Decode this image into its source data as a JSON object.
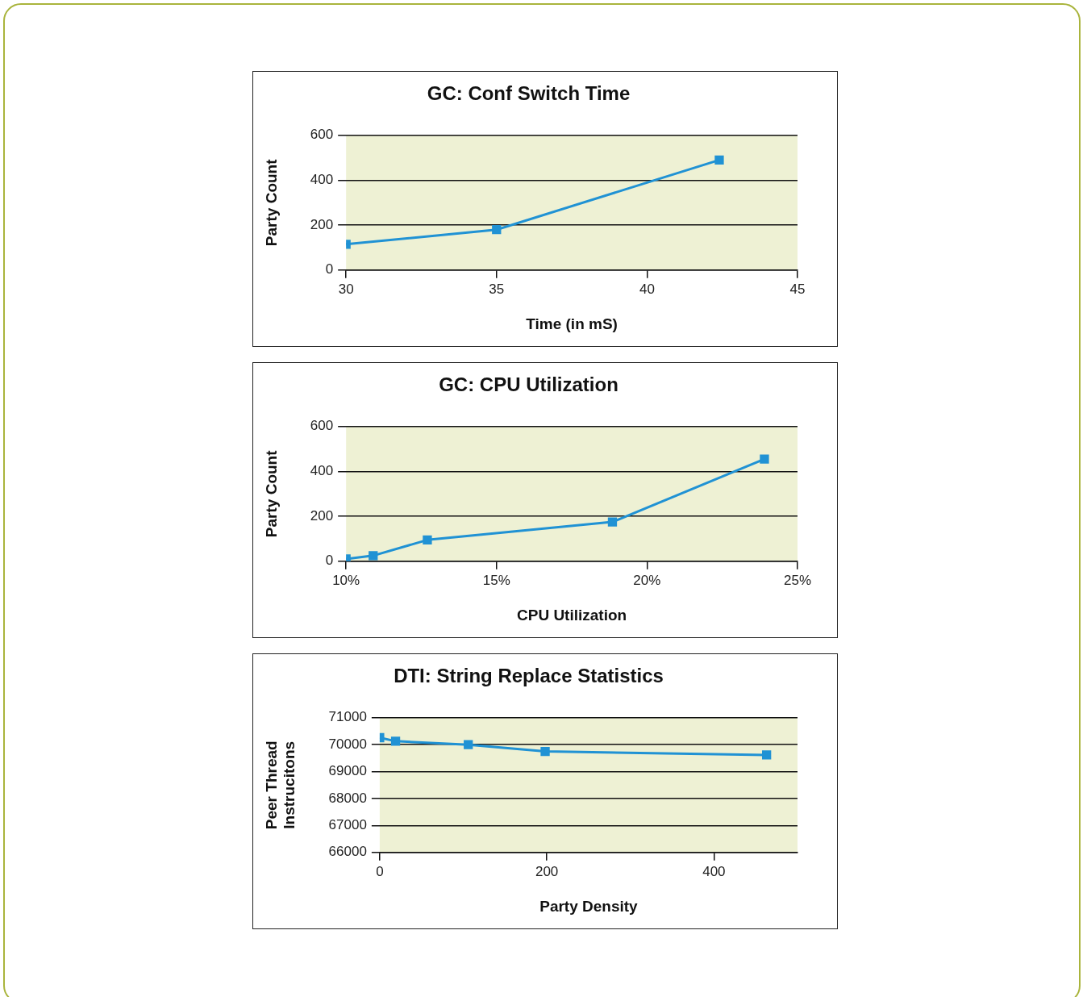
{
  "chart_data": [
    {
      "type": "line",
      "title": "GC: Conf Switch Time",
      "xlabel": "Time (in mS)",
      "ylabel": "Party Count",
      "x": [
        30,
        35,
        42.4
      ],
      "series": [
        {
          "color": "#2092d4",
          "values": [
            115,
            180,
            490
          ]
        }
      ],
      "xlim": [
        30,
        45
      ],
      "xticks": [
        30,
        35,
        40,
        45
      ],
      "ylim": [
        0,
        600
      ],
      "yticks": [
        0,
        200,
        400,
        600
      ],
      "grid": "y",
      "legend": false,
      "marker": "square",
      "line_style": "solid"
    },
    {
      "type": "line",
      "title": "GC: CPU Utilization",
      "xlabel": "CPU Utilization",
      "ylabel": "Party Count",
      "x": [
        10,
        10.9,
        12.7,
        18.85,
        23.9
      ],
      "series": [
        {
          "color": "#2092d4",
          "values": [
            10,
            25,
            95,
            175,
            455
          ]
        }
      ],
      "xlim": [
        10,
        25
      ],
      "xticks": [
        {
          "value": 10,
          "label": "10%"
        },
        {
          "value": 15,
          "label": "15%"
        },
        {
          "value": 20,
          "label": "20%"
        },
        {
          "value": 25,
          "label": "25%"
        }
      ],
      "ylim": [
        0,
        600
      ],
      "yticks": [
        0,
        200,
        400,
        600
      ],
      "grid": "y",
      "legend": false,
      "marker": "square",
      "line_style": "solid"
    },
    {
      "type": "line",
      "title": "DTI: String Replace Statistics",
      "xlabel": "Party Density",
      "ylabel": "Peer Thread Instrucitons",
      "x": [
        0,
        19,
        106,
        198,
        463
      ],
      "series": [
        {
          "color": "#2092d4",
          "values": [
            70260,
            70130,
            70000,
            69750,
            69620
          ]
        }
      ],
      "xlim": [
        0,
        500
      ],
      "xticks": [
        0,
        200,
        400
      ],
      "ylim": [
        66000,
        71000
      ],
      "yticks": [
        66000,
        67000,
        68000,
        69000,
        70000,
        71000
      ],
      "grid": "y",
      "legend": false,
      "marker": "square",
      "line_style": "solid"
    }
  ]
}
